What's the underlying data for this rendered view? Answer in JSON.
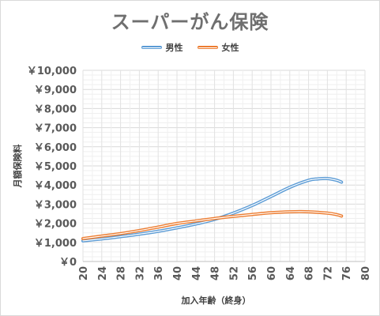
{
  "chart_data": {
    "type": "line",
    "title": "スーパーがん保険",
    "xlabel": "加入年齢（終身）",
    "ylabel": "月額保険料",
    "xlim": [
      20,
      80
    ],
    "xticks": [
      "20",
      "24",
      "28",
      "32",
      "36",
      "40",
      "44",
      "48",
      "52",
      "56",
      "60",
      "64",
      "68",
      "72",
      "76",
      "80"
    ],
    "ylim": [
      0,
      10000
    ],
    "yticks": [
      "￥0",
      "￥1,000",
      "￥2,000",
      "￥3,000",
      "￥4,000",
      "￥5,000",
      "￥6,000",
      "￥7,000",
      "￥8,000",
      "￥9,000",
      "￥10,000"
    ],
    "grid": true,
    "legend_position": "top",
    "series": [
      {
        "name": "男性",
        "color": "#5b9bd5",
        "x": [
          20,
          24,
          28,
          32,
          36,
          40,
          44,
          48,
          52,
          56,
          60,
          64,
          68,
          70,
          72,
          74,
          75
        ],
        "values": [
          1080,
          1180,
          1300,
          1430,
          1580,
          1760,
          1960,
          2200,
          2530,
          2930,
          3400,
          3880,
          4250,
          4320,
          4340,
          4250,
          4150
        ]
      },
      {
        "name": "女性",
        "color": "#ed7d31",
        "x": [
          20,
          24,
          28,
          32,
          36,
          40,
          44,
          48,
          52,
          56,
          60,
          64,
          68,
          72,
          74,
          75
        ],
        "values": [
          1200,
          1330,
          1460,
          1620,
          1800,
          1990,
          2120,
          2250,
          2360,
          2460,
          2550,
          2600,
          2600,
          2530,
          2450,
          2380
        ]
      }
    ]
  }
}
